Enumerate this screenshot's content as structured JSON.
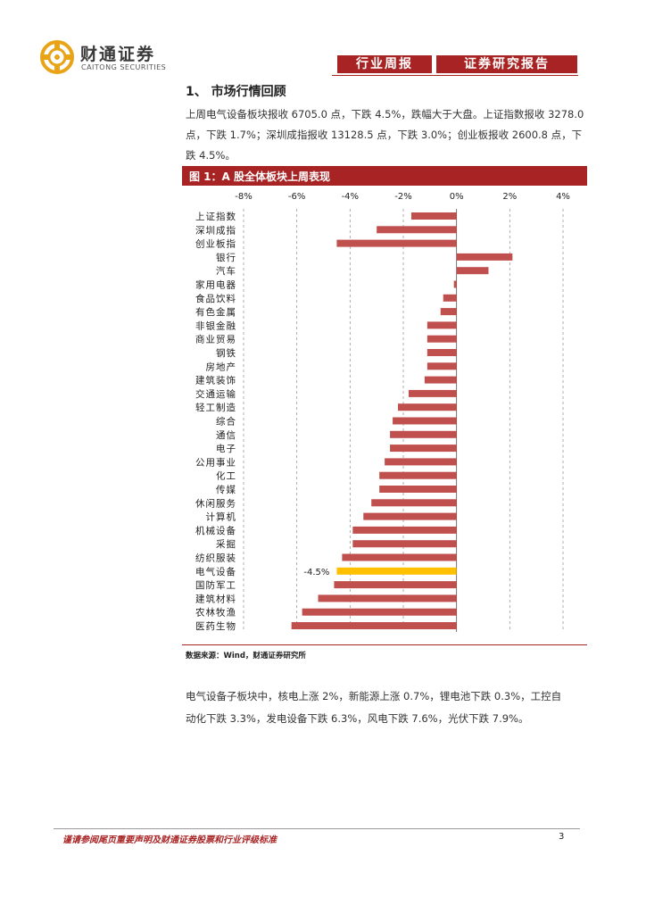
{
  "brand": {
    "name_cn": "财通证券",
    "name_en": "CAITONG SECURITIES"
  },
  "header": {
    "tag1": "行业周报",
    "tag2": "证券研究报告"
  },
  "section": {
    "title": "1、 市场行情回顾",
    "paragraph_lines": [
      "上周电气设备板块报收 6705.0 点，下跌 4.5%，跌幅大于大盘。上证指数报收 3278.0",
      "点，下跌 1.7%；深圳成指报收 13128.5 点，下跌 3.0%；创业板报收 2600.8 点，下",
      "跌 4.5%。"
    ]
  },
  "figure": {
    "title": "图 1：A 股全体板块上周表现",
    "source": "数据来源：Wind，财通证券研究所"
  },
  "chart_data": {
    "type": "bar",
    "orientation": "horizontal",
    "title": "图 1：A 股全体板块上周表现",
    "xlim": [
      -8,
      4
    ],
    "x_ticks": [
      "-8%",
      "-6%",
      "-4%",
      "-2%",
      "0%",
      "2%",
      "4%"
    ],
    "x_tick_values": [
      -8,
      -6,
      -4,
      -2,
      0,
      2,
      4
    ],
    "grid": true,
    "categories": [
      "上证指数",
      "深圳成指",
      "创业板指",
      "银行",
      "汽车",
      "家用电器",
      "食品饮料",
      "有色金属",
      "非银金融",
      "商业贸易",
      "钢铁",
      "房地产",
      "建筑装饰",
      "交通运输",
      "轻工制造",
      "综合",
      "通信",
      "电子",
      "公用事业",
      "化工",
      "传媒",
      "休闲服务",
      "计算机",
      "机械设备",
      "采掘",
      "纺织服装",
      "电气设备",
      "国防军工",
      "建筑材料",
      "农林牧渔",
      "医药生物"
    ],
    "values": [
      -1.7,
      -3.0,
      -4.5,
      2.1,
      1.2,
      -0.1,
      -0.5,
      -0.6,
      -1.1,
      -1.1,
      -1.1,
      -1.1,
      -1.2,
      -1.8,
      -2.2,
      -2.4,
      -2.5,
      -2.5,
      -2.7,
      -2.9,
      -2.9,
      -3.2,
      -3.5,
      -3.9,
      -3.9,
      -4.3,
      -4.5,
      -4.6,
      -5.2,
      -5.8,
      -6.2
    ],
    "highlight_index": 26,
    "highlight_label": "-4.5%",
    "bar_color": "#c0504d",
    "highlight_color": "#ffc000"
  },
  "bottom_paragraph_lines": [
    "电气设备子板块中，核电上涨 2%，新能源上涨 0.7%，锂电池下跌 0.3%，工控自",
    "动化下跌 3.3%，发电设备下跌 6.3%，风电下跌 7.6%，光伏下跌 7.9%。"
  ],
  "footer": {
    "disclaimer": "谨请参阅尾页重要声明及财通证券股票和行业评级标准",
    "page": "3"
  }
}
